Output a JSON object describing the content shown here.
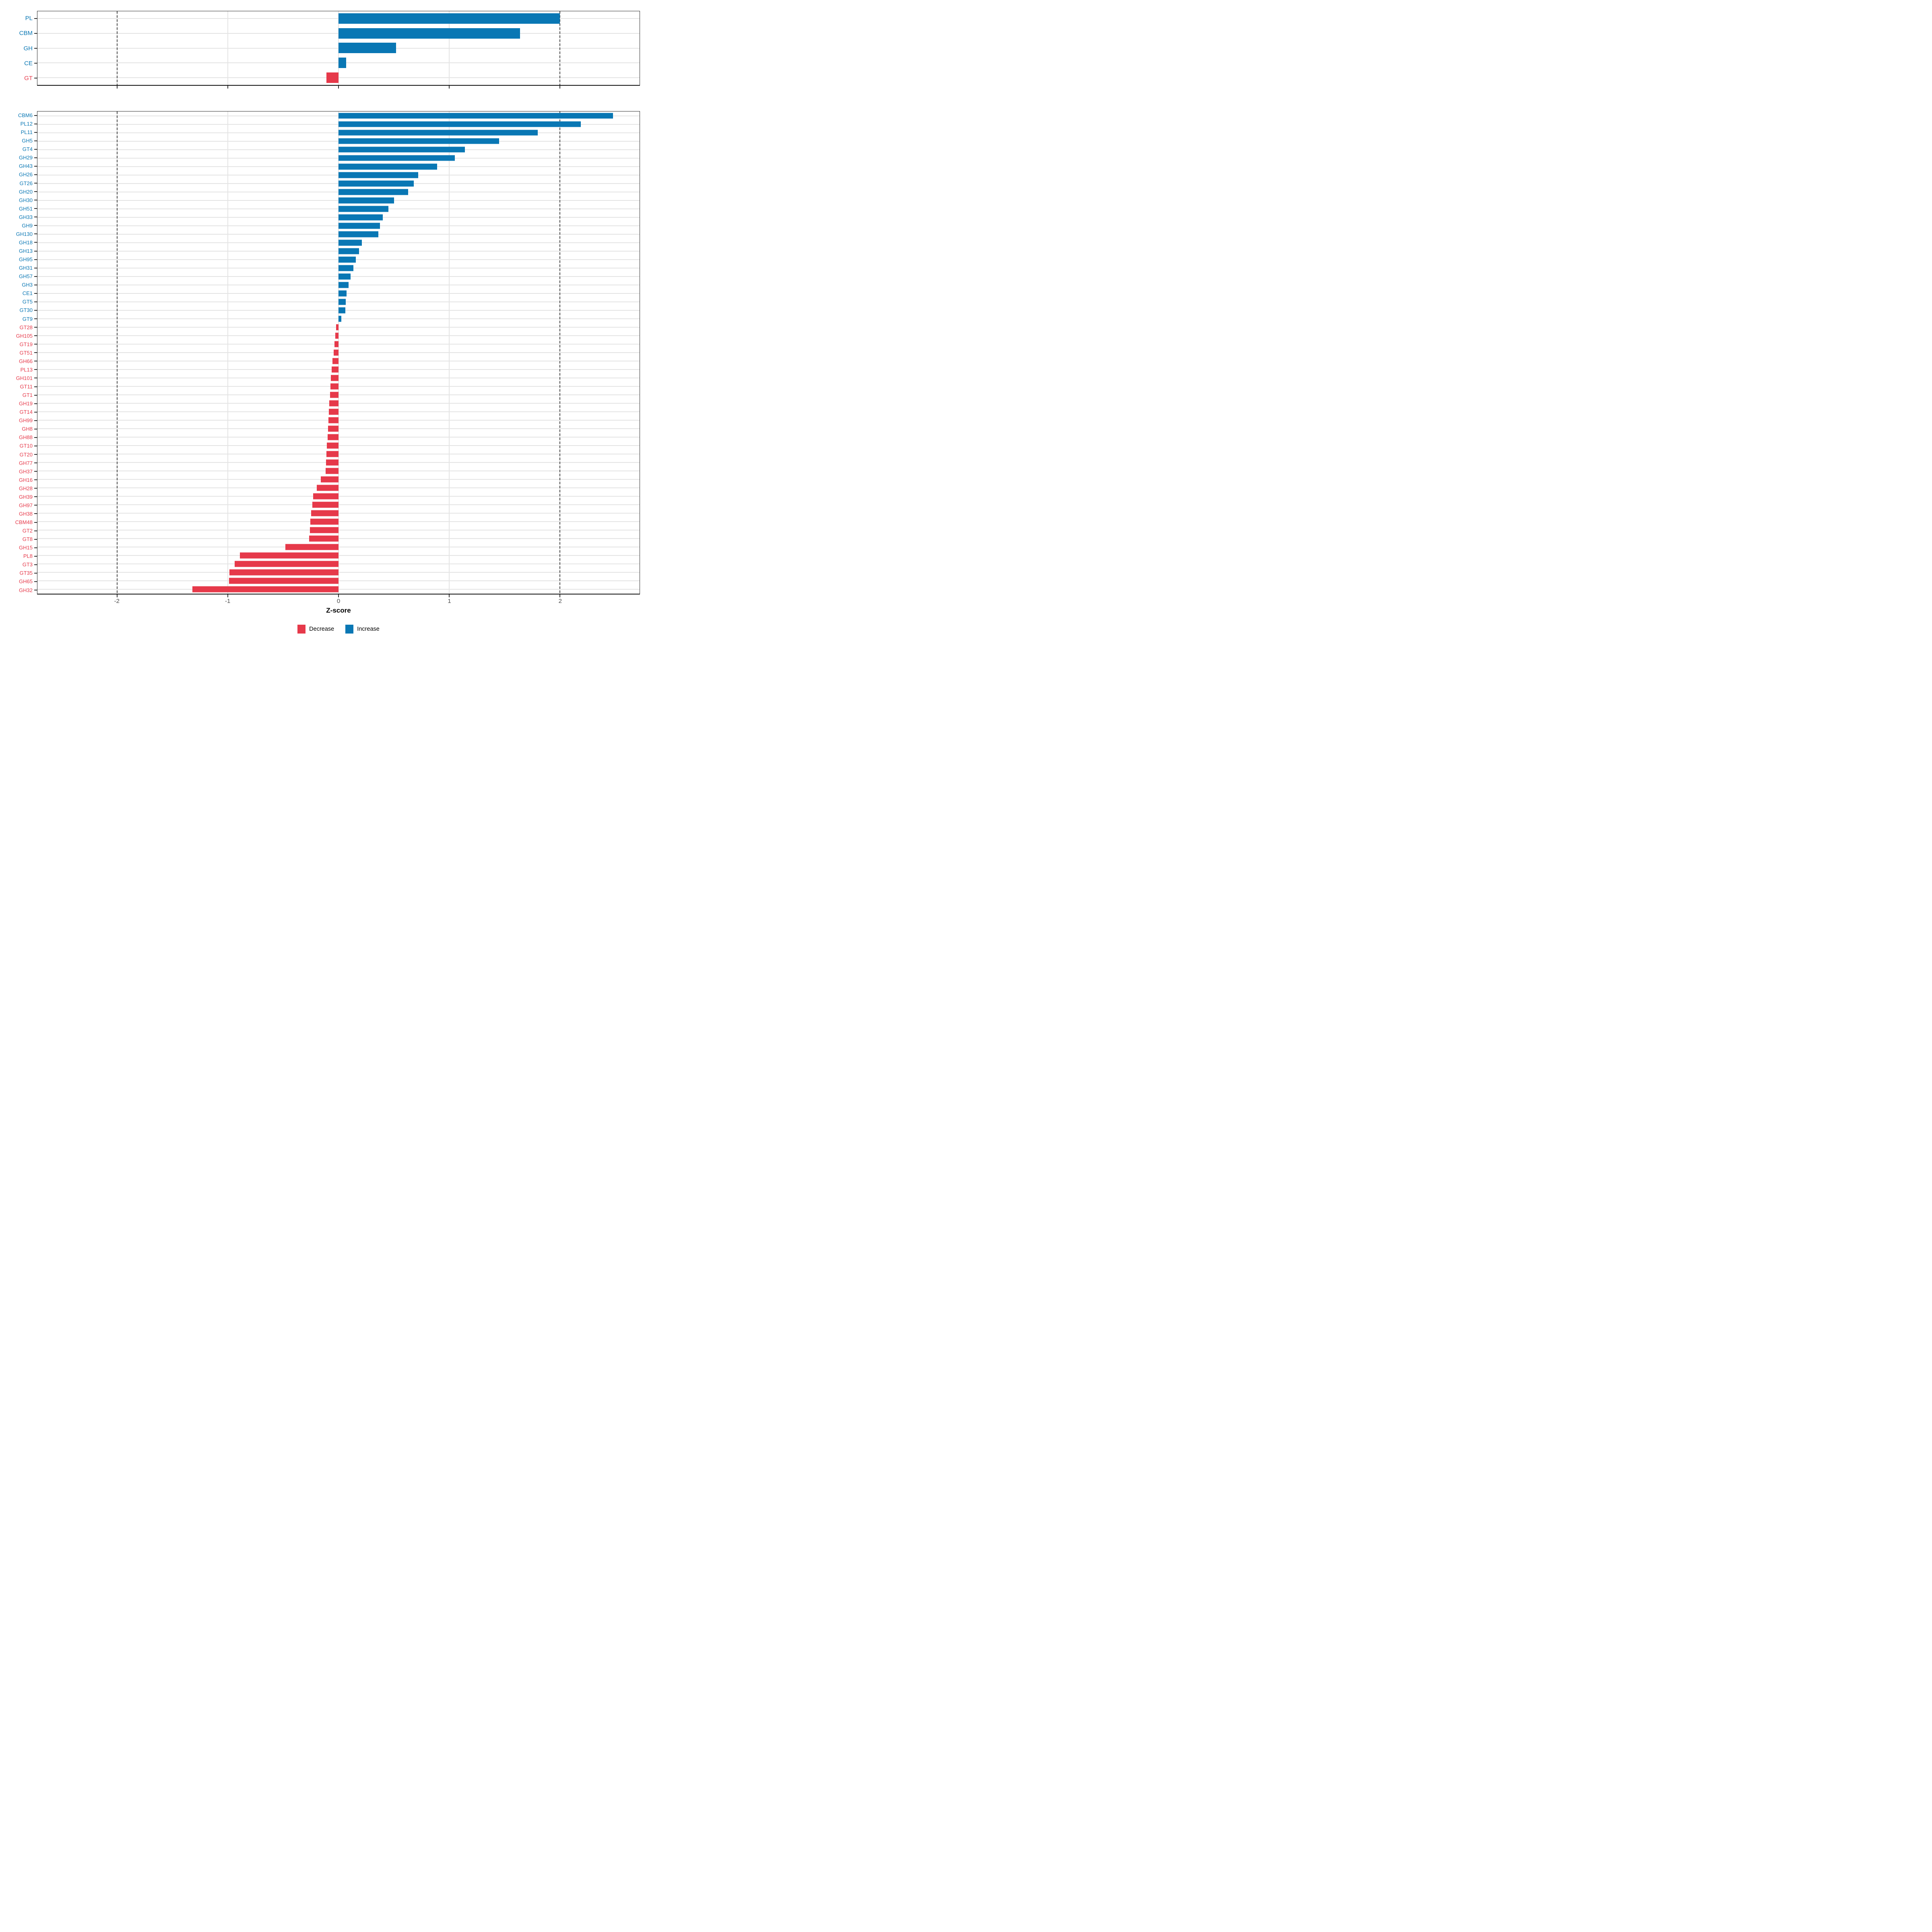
{
  "chart_data": {
    "type": "bar",
    "orientation": "horizontal",
    "title": "",
    "xlabel": "Z-score",
    "ylabel": "",
    "x_domain": [
      -2.72,
      2.72
    ],
    "x_ticks": [
      -2,
      -1,
      0,
      1,
      2
    ],
    "dashed_vlines": [
      -2,
      2
    ],
    "grid": true,
    "legend_position": "bottom",
    "colors": {
      "increase": "#0977B4",
      "decrease": "#E6394A",
      "gridline": "#E4E4E4",
      "dashed_line": "#4A4A4A",
      "axis_text": "#4D4D4D"
    },
    "legend": [
      {
        "key": "decrease",
        "label": "Decrease"
      },
      {
        "key": "increase",
        "label": "Increase"
      }
    ],
    "panels": [
      {
        "name": "cazyme-classes",
        "categories": [
          "PL",
          "CBM",
          "GH",
          "CE",
          "GT"
        ],
        "values": [
          2.0,
          1.64,
          0.52,
          0.07,
          -0.11
        ]
      },
      {
        "name": "cazyme-families",
        "categories": [
          "CBM6",
          "PL12",
          "PL11",
          "GH5",
          "GT4",
          "GH29",
          "GH43",
          "GH26",
          "GT26",
          "GH20",
          "GH30",
          "GH51",
          "GH33",
          "GH9",
          "GH130",
          "GH18",
          "GH13",
          "GH95",
          "GH31",
          "GH57",
          "GH3",
          "CE1",
          "GT5",
          "GT30",
          "GT9",
          "GT28",
          "GH105",
          "GT19",
          "GT51",
          "GH66",
          "PL13",
          "GH101",
          "GT11",
          "GT1",
          "GH19",
          "GT14",
          "GH99",
          "GH8",
          "GH88",
          "GT10",
          "GT20",
          "GH77",
          "GH37",
          "GH16",
          "GH28",
          "GH39",
          "GH97",
          "GH38",
          "CBM48",
          "GT2",
          "GT8",
          "GH15",
          "PL8",
          "GT3",
          "GT35",
          "GH65",
          "GH32"
        ],
        "values": [
          2.48,
          2.19,
          1.8,
          1.45,
          1.14,
          1.05,
          0.89,
          0.72,
          0.68,
          0.63,
          0.5,
          0.45,
          0.4,
          0.375,
          0.36,
          0.21,
          0.185,
          0.155,
          0.135,
          0.11,
          0.09,
          0.072,
          0.066,
          0.06,
          0.025,
          -0.022,
          -0.03,
          -0.035,
          -0.045,
          -0.055,
          -0.062,
          -0.068,
          -0.072,
          -0.076,
          -0.082,
          -0.088,
          -0.092,
          -0.096,
          -0.1,
          -0.105,
          -0.108,
          -0.112,
          -0.118,
          -0.16,
          -0.195,
          -0.228,
          -0.238,
          -0.246,
          -0.255,
          -0.26,
          -0.266,
          -0.48,
          -0.89,
          -0.94,
          -0.985,
          -0.99,
          -1.32
        ]
      }
    ]
  }
}
